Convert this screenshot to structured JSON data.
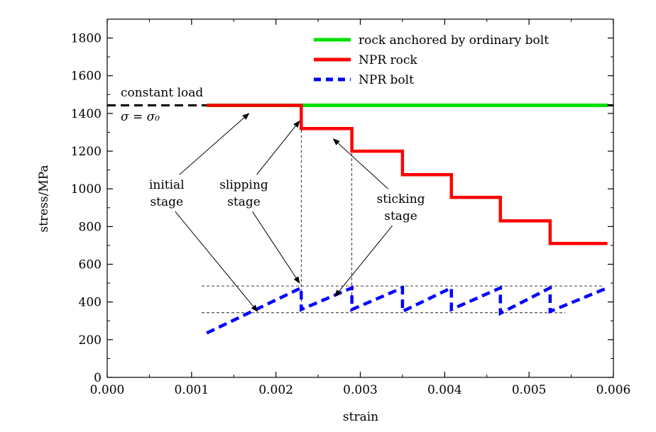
{
  "chart_data": {
    "type": "line",
    "title": "",
    "xlabel": "strain",
    "ylabel": "stress/MPa",
    "xlim": [
      0.0,
      0.006
    ],
    "ylim": [
      0,
      1900
    ],
    "x_ticks": [
      0.0,
      0.001,
      0.002,
      0.003,
      0.004,
      0.005,
      0.006
    ],
    "x_tick_labels": [
      "0.000",
      "0.001",
      "0.002",
      "0.003",
      "0.004",
      "0.005",
      "0.006"
    ],
    "y_ticks": [
      0,
      200,
      400,
      600,
      800,
      1000,
      1200,
      1400,
      1600,
      1800
    ],
    "y_tick_labels": [
      "0",
      "200",
      "400",
      "600",
      "800",
      "1000",
      "1200",
      "1400",
      "1600",
      "1800"
    ],
    "grid": false,
    "legend_position": "top-right",
    "series": [
      {
        "name": "rock anchored by ordinary bolt",
        "color": "#00e000",
        "style": "solid",
        "x": [
          0.00118,
          0.00593
        ],
        "y": [
          1443,
          1443
        ]
      },
      {
        "name": "NPR rock",
        "color": "#ff0000",
        "style": "solid",
        "x": [
          0.00118,
          0.0023,
          0.0023,
          0.0029,
          0.0029,
          0.0035,
          0.0035,
          0.00408,
          0.00408,
          0.00466,
          0.00466,
          0.00525,
          0.00525,
          0.00593
        ],
        "y": [
          1443,
          1443,
          1320,
          1320,
          1200,
          1200,
          1075,
          1075,
          955,
          955,
          830,
          830,
          710,
          710
        ]
      },
      {
        "name": "NPR bolt",
        "color": "#0000ff",
        "style": "dashed",
        "x": [
          0.00118,
          0.0023,
          0.0023,
          0.0029,
          0.0029,
          0.0035,
          0.0035,
          0.00408,
          0.00408,
          0.00466,
          0.00466,
          0.00525,
          0.00525,
          0.00593
        ],
        "y": [
          235,
          475,
          360,
          475,
          360,
          475,
          350,
          475,
          360,
          475,
          340,
          475,
          350,
          475
        ]
      }
    ],
    "reference_line": {
      "label": "constant load",
      "equation": "σ = σ₀",
      "y": 1443,
      "color": "#000000",
      "style": "dashed"
    },
    "guide_lines": {
      "horizontal_y": [
        485,
        343
      ],
      "vertical_x": [
        0.0023,
        0.0029
      ]
    },
    "annotations": [
      {
        "lines": [
          "initial",
          "stage"
        ],
        "anchor": [
          0.000705,
          1000
        ],
        "arrow_targets": [
          [
            0.00168,
            1400
          ],
          [
            0.00178,
            350
          ]
        ]
      },
      {
        "lines": [
          "slipping",
          "stage"
        ],
        "anchor": [
          0.00162,
          1000
        ],
        "arrow_targets": [
          [
            0.00228,
            1360
          ],
          [
            0.00228,
            500
          ]
        ]
      },
      {
        "lines": [
          "sticking",
          "stage"
        ],
        "anchor": [
          0.00348,
          925
        ],
        "arrow_targets": [
          [
            0.00268,
            1265
          ],
          [
            0.0027,
            430
          ]
        ]
      }
    ]
  }
}
